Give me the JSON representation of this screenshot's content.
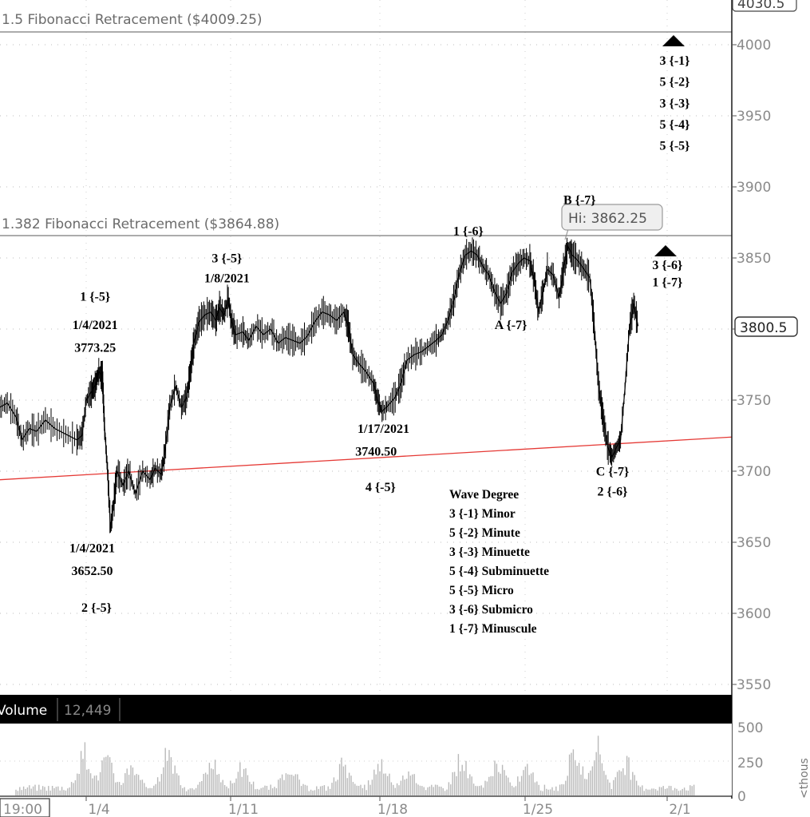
{
  "chart_data": {
    "type": "candlestick-line",
    "instrument_note": "",
    "y_axis": {
      "ticks": [
        "3550",
        "3600",
        "3650",
        "3700",
        "3750",
        "3800",
        "3850",
        "3900",
        "3950",
        "4000"
      ],
      "top_partial_label": "4030.5",
      "ylim": [
        3548,
        4030
      ]
    },
    "x_axis": {
      "ticks": [
        "1/4",
        "1/11",
        "1/18",
        "1/25",
        "2/1"
      ],
      "start_label": "19:00"
    },
    "last_price": "3800.5",
    "high_callout": "Hi: 3862.25",
    "fibonacci_lines": [
      {
        "label": "1.5 Fibonacci  Retracement  ($4009.25)",
        "value": 4009.25
      },
      {
        "label": "1.382 Fibonacci Retracement ($3864.88)",
        "value": 3864.88
      }
    ],
    "trendline": {
      "from": {
        "x": 0,
        "y": 3694
      },
      "to": {
        "x": 1,
        "y": 3724
      }
    },
    "price_path": [
      [
        0.0,
        3745
      ],
      [
        0.01,
        3748
      ],
      [
        0.022,
        3738
      ],
      [
        0.03,
        3722
      ],
      [
        0.04,
        3730
      ],
      [
        0.05,
        3728
      ],
      [
        0.062,
        3736
      ],
      [
        0.075,
        3730
      ],
      [
        0.09,
        3726
      ],
      [
        0.105,
        3722
      ],
      [
        0.112,
        3725
      ],
      [
        0.118,
        3750
      ],
      [
        0.125,
        3756
      ],
      [
        0.13,
        3760
      ],
      [
        0.135,
        3770
      ],
      [
        0.14,
        3766
      ],
      [
        0.143,
        3730
      ],
      [
        0.147,
        3700
      ],
      [
        0.151,
        3660
      ],
      [
        0.156,
        3680
      ],
      [
        0.16,
        3700
      ],
      [
        0.168,
        3690
      ],
      [
        0.176,
        3700
      ],
      [
        0.185,
        3684
      ],
      [
        0.195,
        3700
      ],
      [
        0.205,
        3694
      ],
      [
        0.212,
        3702
      ],
      [
        0.22,
        3698
      ],
      [
        0.225,
        3712
      ],
      [
        0.232,
        3745
      ],
      [
        0.24,
        3760
      ],
      [
        0.248,
        3745
      ],
      [
        0.255,
        3752
      ],
      [
        0.26,
        3770
      ],
      [
        0.265,
        3790
      ],
      [
        0.272,
        3805
      ],
      [
        0.28,
        3810
      ],
      [
        0.288,
        3812
      ],
      [
        0.295,
        3806
      ],
      [
        0.3,
        3815
      ],
      [
        0.306,
        3810
      ],
      [
        0.312,
        3822
      ],
      [
        0.316,
        3806
      ],
      [
        0.322,
        3796
      ],
      [
        0.332,
        3798
      ],
      [
        0.34,
        3792
      ],
      [
        0.35,
        3802
      ],
      [
        0.36,
        3796
      ],
      [
        0.37,
        3800
      ],
      [
        0.38,
        3790
      ],
      [
        0.39,
        3794
      ],
      [
        0.4,
        3792
      ],
      [
        0.41,
        3790
      ],
      [
        0.42,
        3795
      ],
      [
        0.43,
        3805
      ],
      [
        0.44,
        3812
      ],
      [
        0.45,
        3810
      ],
      [
        0.46,
        3806
      ],
      [
        0.47,
        3812
      ],
      [
        0.476,
        3802
      ],
      [
        0.482,
        3782
      ],
      [
        0.49,
        3776
      ],
      [
        0.5,
        3770
      ],
      [
        0.51,
        3762
      ],
      [
        0.516,
        3750
      ],
      [
        0.522,
        3742
      ],
      [
        0.53,
        3746
      ],
      [
        0.54,
        3752
      ],
      [
        0.548,
        3762
      ],
      [
        0.556,
        3778
      ],
      [
        0.566,
        3782
      ],
      [
        0.576,
        3784
      ],
      [
        0.586,
        3788
      ],
      [
        0.596,
        3792
      ],
      [
        0.604,
        3796
      ],
      [
        0.612,
        3806
      ],
      [
        0.62,
        3820
      ],
      [
        0.628,
        3840
      ],
      [
        0.636,
        3852
      ],
      [
        0.644,
        3855
      ],
      [
        0.652,
        3852
      ],
      [
        0.66,
        3844
      ],
      [
        0.668,
        3838
      ],
      [
        0.676,
        3826
      ],
      [
        0.684,
        3818
      ],
      [
        0.692,
        3825
      ],
      [
        0.7,
        3840
      ],
      [
        0.708,
        3846
      ],
      [
        0.716,
        3850
      ],
      [
        0.724,
        3848
      ],
      [
        0.73,
        3835
      ],
      [
        0.736,
        3812
      ],
      [
        0.742,
        3826
      ],
      [
        0.748,
        3842
      ],
      [
        0.756,
        3838
      ],
      [
        0.764,
        3822
      ],
      [
        0.77,
        3842
      ],
      [
        0.776,
        3858
      ],
      [
        0.782,
        3852
      ],
      [
        0.79,
        3848
      ],
      [
        0.798,
        3842
      ],
      [
        0.806,
        3836
      ],
      [
        0.812,
        3802
      ],
      [
        0.818,
        3760
      ],
      [
        0.824,
        3738
      ],
      [
        0.83,
        3718
      ],
      [
        0.836,
        3710
      ],
      [
        0.842,
        3716
      ],
      [
        0.848,
        3722
      ],
      [
        0.854,
        3758
      ],
      [
        0.86,
        3800
      ],
      [
        0.866,
        3818
      ],
      [
        0.872,
        3802
      ]
    ],
    "wave_labels": [
      {
        "text": "1 {-5}",
        "x": 0.13,
        "y": 3820
      },
      {
        "text": "1/4/2021",
        "x": 0.13,
        "y": 3800
      },
      {
        "text": "3773.25",
        "x": 0.13,
        "y": 3784
      },
      {
        "text": "3 {-5}",
        "x": 0.31,
        "y": 3847
      },
      {
        "text": "1/8/2021",
        "x": 0.31,
        "y": 3833
      },
      {
        "text": "1/4/2021",
        "x": 0.126,
        "y": 3643
      },
      {
        "text": "3652.50",
        "x": 0.126,
        "y": 3627
      },
      {
        "text": "2 {-5}",
        "x": 0.132,
        "y": 3601
      },
      {
        "text": "1/17/2021",
        "x": 0.524,
        "y": 3727
      },
      {
        "text": "3740.50",
        "x": 0.514,
        "y": 3711
      },
      {
        "text": "4 {-5}",
        "x": 0.52,
        "y": 3686
      },
      {
        "text": "1 {-6}",
        "x": 0.64,
        "y": 3866
      },
      {
        "text": "B {-7}",
        "x": 0.792,
        "y": 3888
      },
      {
        "text": "A {-7}",
        "x": 0.698,
        "y": 3800
      },
      {
        "text": "C {-7}",
        "x": 0.837,
        "y": 3697
      },
      {
        "text": "2 {-6}",
        "x": 0.837,
        "y": 3683
      },
      {
        "text": "3 {-6}",
        "x": 0.912,
        "y": 3842
      },
      {
        "text": "1 {-7}",
        "x": 0.912,
        "y": 3830
      },
      {
        "text": "3 {-1}",
        "x": 0.922,
        "y": 3986
      },
      {
        "text": "5 {-2}",
        "x": 0.922,
        "y": 3971
      },
      {
        "text": "3 {-3}",
        "x": 0.922,
        "y": 3956
      },
      {
        "text": "5 {-4}",
        "x": 0.922,
        "y": 3941
      },
      {
        "text": "5 {-5}",
        "x": 0.922,
        "y": 3926
      }
    ],
    "wave_degree_legend": {
      "title": "Wave Degree",
      "items": [
        "3 {-1} Minor",
        "5 {-2} Minute",
        "3 {-3} Minuette",
        "5 {-4} Subminuette",
        "5 {-5} Micro",
        "3 {-6} Submicro",
        "1 {-7} Minuscule"
      ]
    },
    "volume": {
      "label": "Volume",
      "value": "12,449",
      "ticks": [
        "500",
        "250",
        "0"
      ],
      "axis_label": "<thous"
    }
  }
}
